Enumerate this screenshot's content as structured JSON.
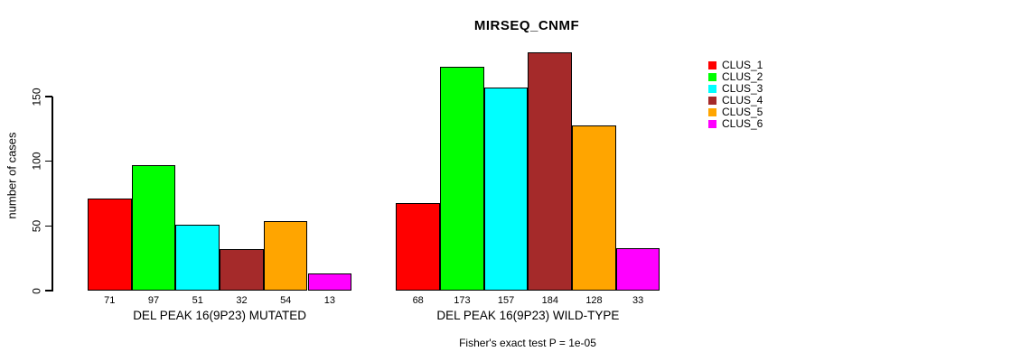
{
  "chart_data": {
    "type": "bar",
    "title": "MIRSEQ_CNMF",
    "xlabel": "",
    "ylabel": "number of cases",
    "ylim": [
      0,
      150
    ],
    "yticks": [
      0,
      50,
      100,
      150
    ],
    "grid": false,
    "legend_position": "right",
    "value_labels_shown": true,
    "categories": [
      "DEL PEAK 16(9P23) MUTATED",
      "DEL PEAK 16(9P23) WILD-TYPE"
    ],
    "series": [
      {
        "name": "CLUS_1",
        "color": "#FF0000",
        "values": [
          71,
          68
        ]
      },
      {
        "name": "CLUS_2",
        "color": "#00FF00",
        "values": [
          97,
          173
        ]
      },
      {
        "name": "CLUS_3",
        "color": "#00FFFF",
        "values": [
          51,
          157
        ]
      },
      {
        "name": "CLUS_4",
        "color": "#A52A2A",
        "values": [
          32,
          184
        ]
      },
      {
        "name": "CLUS_5",
        "color": "#FFA500",
        "values": [
          54,
          128
        ]
      },
      {
        "name": "CLUS_6",
        "color": "#FF00FF",
        "values": [
          13,
          33
        ]
      }
    ],
    "annotation": "Fisher's exact test P = 1e-05"
  }
}
